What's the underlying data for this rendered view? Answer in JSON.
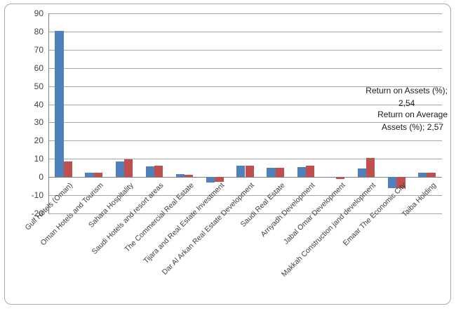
{
  "chart_data": {
    "type": "bar",
    "title": "",
    "xlabel": "",
    "ylabel": "",
    "ylim": [
      -20,
      90
    ],
    "ytick_step": 10,
    "yticks": [
      90,
      80,
      70,
      60,
      50,
      40,
      30,
      20,
      10,
      0,
      -10,
      -20
    ],
    "grid": true,
    "legend_position": "none",
    "categories": [
      "Gulf Hotels (Oman)",
      "Oman Hotels and Tourism",
      "Sahara Hospitality",
      "Saudi Hotels and resort areas",
      "The Commercial Real Estate",
      "Tijara and Real Estate Investment",
      "Dar Al Arkan Real Estate Development",
      "Saudi Real Estate",
      "Arriyadh Development",
      "Jabal Omar Development",
      "Makkah Construction jand development",
      "Emaar The Economic City",
      "Taiba Holding"
    ],
    "series": [
      {
        "name": "Return on Assets (%)",
        "color": "#4F81BD",
        "values": [
          80.5,
          2.54,
          8.4,
          6.0,
          1.5,
          -3.2,
          6.2,
          5.0,
          5.4,
          -0.5,
          4.6,
          -6.1,
          2.5
        ]
      },
      {
        "name": "Return on Average Assets (%)",
        "color": "#C0504D",
        "values": [
          8.4,
          2.57,
          9.6,
          6.2,
          1.4,
          -2.8,
          6.1,
          5.1,
          6.4,
          -1.0,
          10.5,
          -6.0,
          2.4
        ]
      }
    ],
    "annotations": [
      {
        "lines": [
          "Return on Assets (%);",
          "2,54"
        ]
      },
      {
        "lines": [
          "Return on Average",
          "Assets (%);  2,57"
        ]
      }
    ]
  },
  "colors": {
    "bar_blue": "#4F81BD",
    "bar_red": "#C0504D",
    "gridline": "#A6A6A6",
    "axis_line": "#7F7F7F",
    "tick_text": "#3F3F3F",
    "frame_border": "#ABABAB"
  }
}
